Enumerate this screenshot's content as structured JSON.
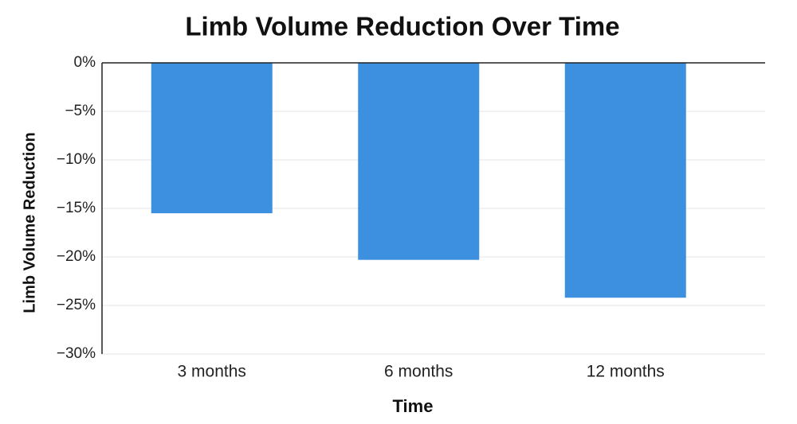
{
  "chart_data": {
    "type": "bar",
    "title": "Limb Volume Reduction Over Time",
    "x_label": "Time",
    "y_label": "Limb Volume Reduction",
    "categories": [
      "3 months",
      "6 months",
      "12 months"
    ],
    "values": [
      -15.5,
      -20.3,
      -24.2
    ],
    "color": "#3d8fe0",
    "ylim": [
      -30,
      0
    ],
    "yticks": [
      {
        "value": 0,
        "label": "0%"
      },
      {
        "value": -5,
        "label": "−5%"
      },
      {
        "value": -10,
        "label": "−10%"
      },
      {
        "value": -15,
        "label": "−15%"
      },
      {
        "value": -20,
        "label": "−20%"
      },
      {
        "value": -25,
        "label": "−25%"
      },
      {
        "value": -30,
        "label": "−30%"
      }
    ],
    "grid": true
  }
}
